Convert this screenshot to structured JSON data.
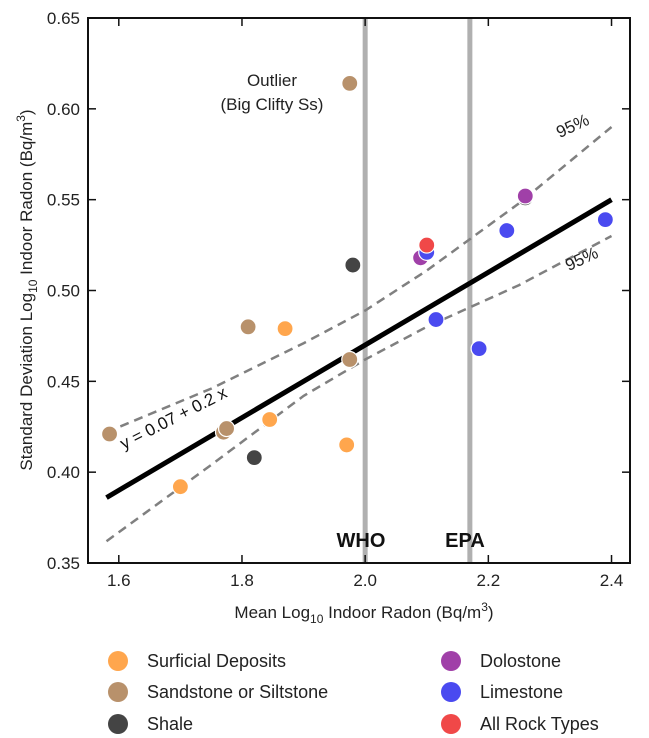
{
  "chart_data": {
    "type": "scatter",
    "xlabel": {
      "prefix": "Mean Log",
      "sub": "10",
      "mid": " Indoor Radon (Bq/m",
      "sup": "3",
      "suffix": ")"
    },
    "ylabel": {
      "prefix": "Standard Deviation Log",
      "sub": "10",
      "mid": " Indoor Radon (Bq/m",
      "sup": "3",
      "suffix": ")"
    },
    "xlim": [
      1.55,
      2.43
    ],
    "ylim": [
      0.35,
      0.65
    ],
    "xticks": [
      1.6,
      1.8,
      2.0,
      2.2,
      2.4
    ],
    "xtick_labels": [
      "1.6",
      "1.8",
      "2.0",
      "2.2",
      "2.4"
    ],
    "yticks": [
      0.35,
      0.4,
      0.45,
      0.5,
      0.55,
      0.6,
      0.65
    ],
    "ytick_labels": [
      "0.35",
      "0.40",
      "0.45",
      "0.50",
      "0.55",
      "0.60",
      "0.65"
    ],
    "grid": false,
    "legend_position": "bottom, two columns below plot",
    "series": [
      {
        "name": "Surficial Deposits",
        "color": "#ffa64d",
        "points": [
          [
            1.7,
            0.392
          ],
          [
            1.87,
            0.479
          ],
          [
            1.845,
            0.429
          ],
          [
            1.97,
            0.415
          ]
        ]
      },
      {
        "name": "Sandstone or Siltstone",
        "color": "#b8916b",
        "points": [
          [
            1.585,
            0.421
          ],
          [
            1.81,
            0.48
          ],
          [
            1.77,
            0.422
          ],
          [
            1.775,
            0.424
          ],
          [
            1.975,
            0.462
          ],
          [
            1.975,
            0.614
          ]
        ]
      },
      {
        "name": "Shale",
        "color": "#444444",
        "points": [
          [
            1.82,
            0.408
          ],
          [
            1.98,
            0.514
          ],
          [
            2.26,
            0.551
          ]
        ]
      },
      {
        "name": "Dolostone",
        "color": "#a040a8",
        "points": [
          [
            2.09,
            0.518
          ],
          [
            2.26,
            0.552
          ]
        ]
      },
      {
        "name": "Limestone",
        "color": "#4a4af0",
        "points": [
          [
            2.1,
            0.521
          ],
          [
            2.115,
            0.484
          ],
          [
            2.185,
            0.468
          ],
          [
            2.23,
            0.533
          ],
          [
            2.39,
            0.539
          ]
        ]
      },
      {
        "name": "All Rock Types",
        "color": "#f04848",
        "points": [
          [
            2.1,
            0.525
          ]
        ]
      }
    ],
    "regression": {
      "intercept": 0.07,
      "slope": 0.2,
      "x_range": [
        1.58,
        2.4
      ],
      "label": "y = 0.07 + 0.2 x"
    },
    "confidence_band": {
      "label_upper": "95%",
      "label_lower": "95%",
      "upper": [
        [
          1.58,
          0.422
        ],
        [
          1.75,
          0.446
        ],
        [
          1.9,
          0.471
        ],
        [
          2.0,
          0.489
        ],
        [
          2.1,
          0.511
        ],
        [
          2.25,
          0.548
        ],
        [
          2.4,
          0.59
        ]
      ],
      "lower": [
        [
          1.58,
          0.362
        ],
        [
          1.75,
          0.404
        ],
        [
          1.9,
          0.442
        ],
        [
          2.0,
          0.462
        ],
        [
          2.1,
          0.48
        ],
        [
          2.25,
          0.503
        ],
        [
          2.4,
          0.53
        ]
      ]
    },
    "vertical_lines": [
      {
        "x": 2.0,
        "label": "WHO"
      },
      {
        "x": 2.17,
        "label": "EPA"
      }
    ],
    "annotation": {
      "line1": "Outlier",
      "line2": "(Big Clifty Ss)"
    }
  },
  "legend": {
    "left": [
      {
        "label": "Surficial Deposits",
        "color": "#ffa64d"
      },
      {
        "label": "Sandstone or Siltstone",
        "color": "#b8916b"
      },
      {
        "label": "Shale",
        "color": "#444444"
      }
    ],
    "right": [
      {
        "label": "Dolostone",
        "color": "#a040a8"
      },
      {
        "label": "Limestone",
        "color": "#4a4af0"
      },
      {
        "label": "All Rock Types",
        "color": "#f04848"
      }
    ]
  },
  "colors": {
    "axis": "#111111",
    "reference_line": "#b0b0b0",
    "regression": "#000000",
    "confidence": "#808080"
  }
}
